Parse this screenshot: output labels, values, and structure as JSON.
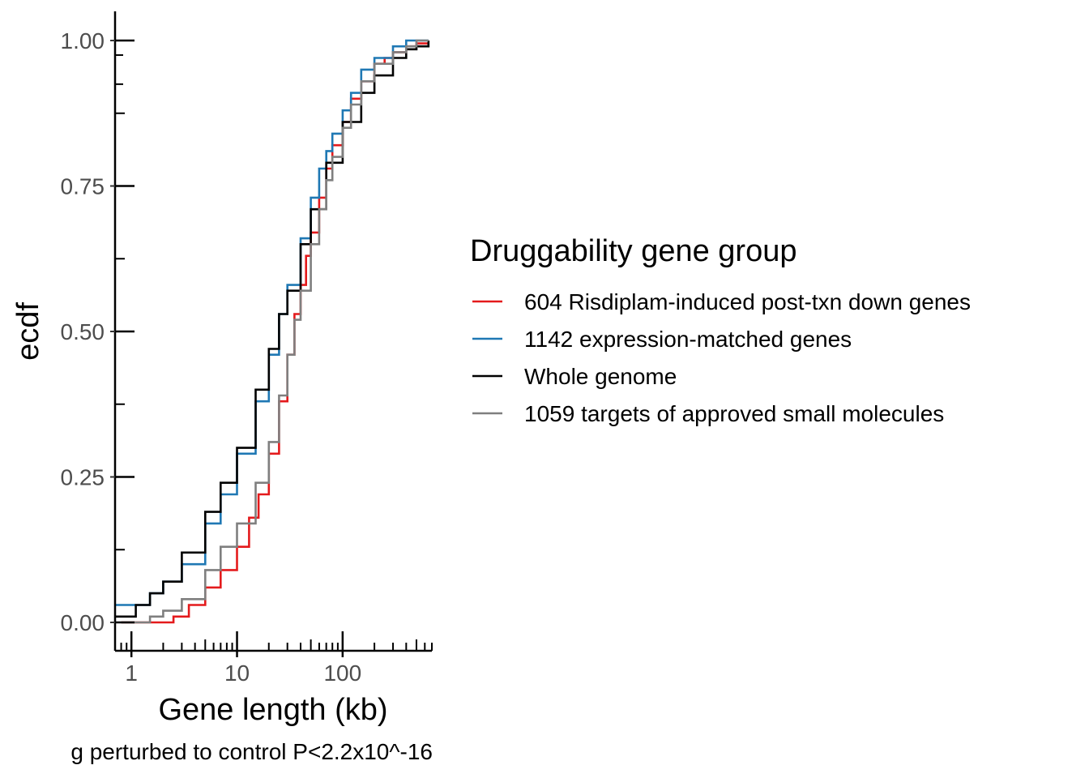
{
  "chart_data": {
    "type": "line",
    "xlabel": "Gene length (kb)",
    "ylabel": "ecdf",
    "x_scale": "log10",
    "xlim": [
      0.7,
      700
    ],
    "ylim": [
      -0.05,
      1.05
    ],
    "x_ticks": [
      {
        "value": 1,
        "label": "1"
      },
      {
        "value": 10,
        "label": "10"
      },
      {
        "value": 100,
        "label": "100"
      }
    ],
    "y_ticks": [
      {
        "value": 0.0,
        "label": "0.00"
      },
      {
        "value": 0.25,
        "label": "0.25"
      },
      {
        "value": 0.5,
        "label": "0.50"
      },
      {
        "value": 0.75,
        "label": "0.75"
      },
      {
        "value": 1.0,
        "label": "1.00"
      }
    ],
    "grid": false,
    "legend": {
      "title": "Druggability gene group",
      "placement": "right"
    },
    "caption": "g perturbed to control P<2.2x10^-16",
    "series": [
      {
        "name": "604 Risdiplam-induced post-txn down genes",
        "color": "#e41a1c",
        "x": [
          0.8,
          1.5,
          2.5,
          3.5,
          5,
          7,
          10,
          13,
          16,
          20,
          25,
          30,
          35,
          40,
          45,
          50,
          60,
          70,
          80,
          100,
          120,
          150,
          200,
          250,
          300,
          400,
          500,
          650
        ],
        "y": [
          0.0,
          0.0,
          0.01,
          0.03,
          0.06,
          0.09,
          0.13,
          0.18,
          0.22,
          0.29,
          0.38,
          0.46,
          0.53,
          0.58,
          0.63,
          0.67,
          0.73,
          0.78,
          0.82,
          0.86,
          0.9,
          0.93,
          0.96,
          0.97,
          0.98,
          0.99,
          0.995,
          0.995
        ]
      },
      {
        "name": "1142 expression-matched genes",
        "color": "#1f78b4",
        "x": [
          0.7,
          1.0,
          1.5,
          2.0,
          3.0,
          5.0,
          7.0,
          10.0,
          15.0,
          20.0,
          25.0,
          30.0,
          40.0,
          50.0,
          60.0,
          70.0,
          80.0,
          100.0,
          120.0,
          150.0,
          200.0,
          300.0,
          400.0,
          500.0,
          650.0
        ],
        "y": [
          0.03,
          0.03,
          0.05,
          0.07,
          0.1,
          0.17,
          0.22,
          0.29,
          0.38,
          0.46,
          0.53,
          0.58,
          0.66,
          0.73,
          0.78,
          0.81,
          0.84,
          0.88,
          0.91,
          0.95,
          0.97,
          0.99,
          1.0,
          1.0,
          1.0
        ]
      },
      {
        "name": "Whole genome",
        "color": "#000000",
        "x": [
          0.7,
          1.0,
          1.1,
          1.5,
          2.0,
          3.0,
          5.0,
          7.0,
          10.0,
          15.0,
          20.0,
          25.0,
          30.0,
          40.0,
          50.0,
          70.0,
          100.0,
          150.0,
          200.0,
          300.0,
          400.0,
          500.0,
          650.0
        ],
        "y": [
          0.01,
          0.01,
          0.03,
          0.05,
          0.07,
          0.12,
          0.19,
          0.24,
          0.3,
          0.4,
          0.47,
          0.53,
          0.57,
          0.65,
          0.71,
          0.79,
          0.86,
          0.91,
          0.94,
          0.97,
          0.985,
          0.99,
          1.0
        ]
      },
      {
        "name": "1059 targets of approved small molecules",
        "color": "#7f7f7f",
        "x": [
          0.8,
          1.5,
          2.0,
          3.0,
          5.0,
          7.0,
          10.0,
          15.0,
          20.0,
          25.0,
          30.0,
          35.0,
          40.0,
          50.0,
          60.0,
          70.0,
          80.0,
          100.0,
          120.0,
          150.0,
          200.0,
          300.0,
          400.0,
          500.0,
          650.0
        ],
        "y": [
          0.0,
          0.01,
          0.02,
          0.04,
          0.09,
          0.13,
          0.17,
          0.24,
          0.31,
          0.39,
          0.46,
          0.52,
          0.57,
          0.65,
          0.71,
          0.76,
          0.8,
          0.85,
          0.89,
          0.93,
          0.96,
          0.98,
          0.99,
          1.0,
          1.0
        ]
      }
    ]
  }
}
